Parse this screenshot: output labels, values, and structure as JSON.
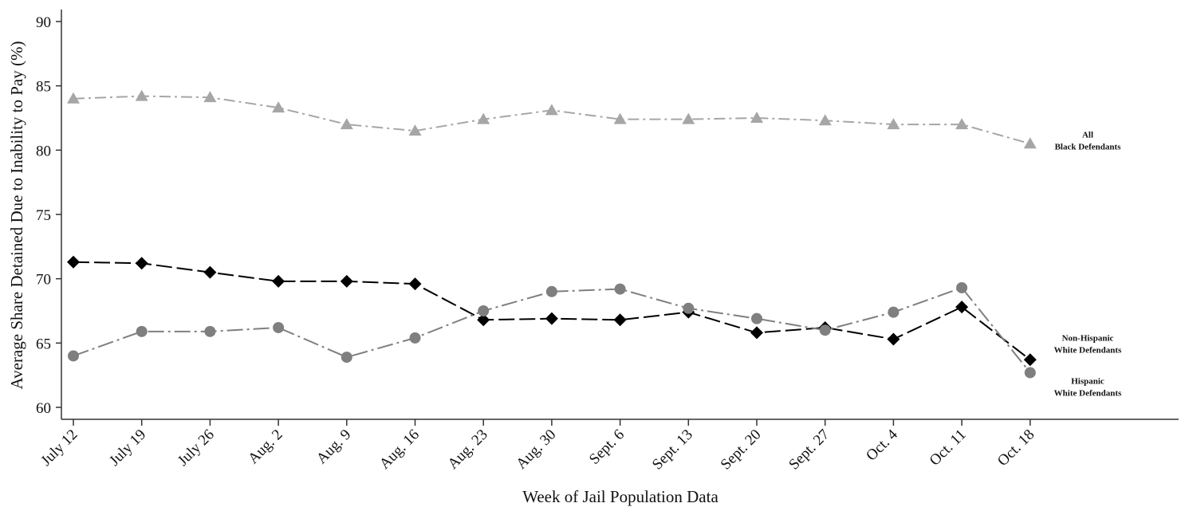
{
  "chart_data": {
    "type": "line",
    "title": "",
    "xlabel": "Week of Jail Population Data",
    "ylabel": "Average Share Detained Due to Inability to Pay (%)",
    "ylim": [
      60,
      90
    ],
    "yticks": [
      60,
      65,
      70,
      75,
      80,
      85,
      90
    ],
    "categories": [
      "July 12",
      "July 19",
      "July 26",
      "Aug. 2",
      "Aug. 9",
      "Aug. 16",
      "Aug. 23",
      "Aug. 30",
      "Sept. 6",
      "Sept. 13",
      "Sept. 20",
      "Sept. 27",
      "Oct. 4",
      "Oct. 11",
      "Oct. 18"
    ],
    "grid": false,
    "legend": "none (end-of-line labels)",
    "series": [
      {
        "name": "All Black Defendants",
        "label_lines": [
          "All",
          "Black Defendants"
        ],
        "values": [
          84.0,
          84.2,
          84.1,
          83.3,
          82.0,
          81.5,
          82.4,
          83.1,
          82.4,
          82.4,
          82.5,
          82.3,
          82.0,
          82.0,
          80.5
        ],
        "color": "#a6a6a6",
        "marker": "triangle",
        "dash": "dash-dot"
      },
      {
        "name": "Non-Hispanic White Defendants",
        "label_lines": [
          "Non-Hispanic",
          "White Defendants"
        ],
        "values": [
          71.3,
          71.2,
          70.5,
          69.8,
          69.8,
          69.6,
          66.8,
          66.9,
          66.8,
          67.4,
          65.8,
          66.2,
          65.3,
          67.8,
          63.7
        ],
        "color": "#000000",
        "marker": "diamond",
        "dash": "long-dash"
      },
      {
        "name": "Hispanic White Defendants",
        "label_lines": [
          "Hispanic",
          "White Defendants"
        ],
        "values": [
          64.0,
          65.9,
          65.9,
          66.2,
          63.9,
          65.4,
          67.5,
          69.0,
          69.2,
          67.7,
          66.9,
          66.0,
          67.4,
          69.3,
          62.7
        ],
        "color": "#7f7f7f",
        "marker": "circle",
        "dash": "long-dash-dot"
      }
    ]
  }
}
